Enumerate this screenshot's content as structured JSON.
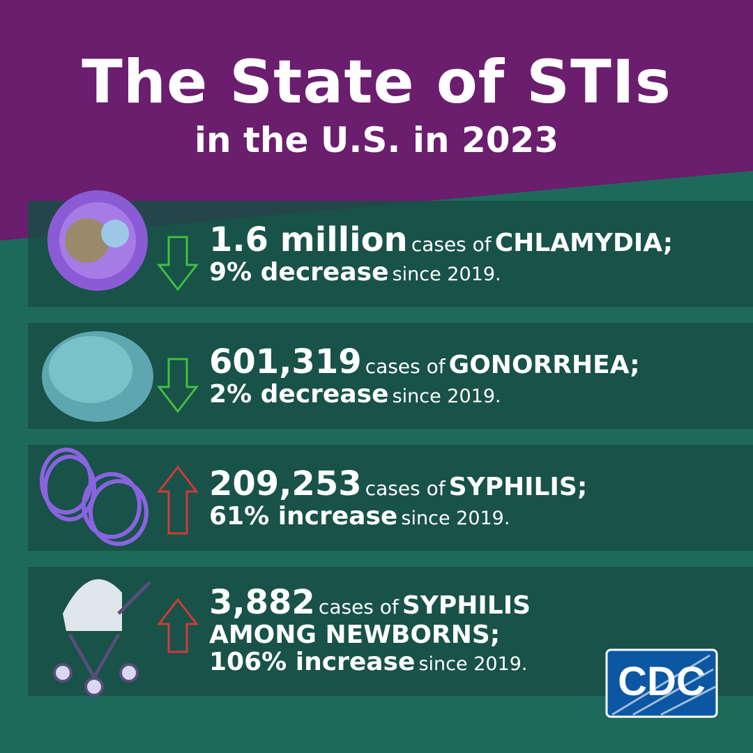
{
  "header": {
    "title": "The State of STIs",
    "subtitle": "in the U.S. in 2023"
  },
  "items": [
    {
      "count": "1.6 million",
      "connector": "cases of",
      "disease": "CHLAMYDIA;",
      "change": "9% decrease",
      "since": "since 2019."
    },
    {
      "count": "601,319",
      "connector": "cases of",
      "disease": "GONORRHEA;",
      "change": "2% decrease",
      "since": "since 2019."
    },
    {
      "count": "209,253",
      "connector": "cases of",
      "disease": "SYPHILIS;",
      "change": "61% increase",
      "since": "since 2019."
    },
    {
      "count": "3,882",
      "connector": "cases of",
      "disease": "SYPHILIS AMONG NEWBORNS;",
      "change": "106% increase",
      "since": "since 2019."
    }
  ],
  "logo": {
    "text": "CDC"
  }
}
